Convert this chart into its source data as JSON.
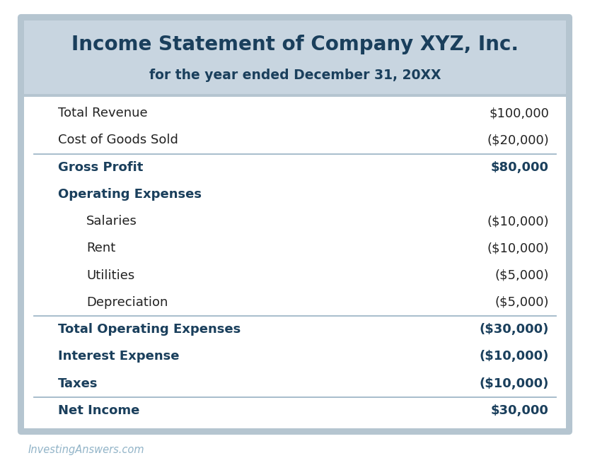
{
  "title_line1": "Income Statement of Company XYZ, Inc.",
  "title_line2": "for the year ended December 31, 20XX",
  "header_bg": "#c8d5e0",
  "outer_border_color": "#b5c5d0",
  "table_bg": "#ffffff",
  "figure_bg": "#ffffff",
  "title_color": "#1a3f5c",
  "bold_row_color": "#1a3f5c",
  "normal_row_color": "#222222",
  "divider_color": "#a0b8c8",
  "watermark_color": "#92b4c8",
  "watermark_text": "InvestingAnswers.com",
  "rows": [
    {
      "label": "Total Revenue",
      "value": "$100,000",
      "bold": false,
      "indent": false,
      "divider_below": false
    },
    {
      "label": "Cost of Goods Sold",
      "value": "($20,000)",
      "bold": false,
      "indent": false,
      "divider_below": true
    },
    {
      "label": "Gross Profit",
      "value": "$80,000",
      "bold": true,
      "indent": false,
      "divider_below": false
    },
    {
      "label": "Operating Expenses",
      "value": "",
      "bold": true,
      "indent": false,
      "divider_below": false
    },
    {
      "label": "Salaries",
      "value": "($10,000)",
      "bold": false,
      "indent": true,
      "divider_below": false
    },
    {
      "label": "Rent",
      "value": "($10,000)",
      "bold": false,
      "indent": true,
      "divider_below": false
    },
    {
      "label": "Utilities",
      "value": "($5,000)",
      "bold": false,
      "indent": true,
      "divider_below": false
    },
    {
      "label": "Depreciation",
      "value": "($5,000)",
      "bold": false,
      "indent": true,
      "divider_below": true
    },
    {
      "label": "Total Operating Expenses",
      "value": "($30,000)",
      "bold": true,
      "indent": false,
      "divider_below": false
    },
    {
      "label": "Interest Expense",
      "value": "($10,000)",
      "bold": true,
      "indent": false,
      "divider_below": false
    },
    {
      "label": "Taxes",
      "value": "($10,000)",
      "bold": true,
      "indent": false,
      "divider_below": true
    },
    {
      "label": "Net Income",
      "value": "$30,000",
      "bold": true,
      "indent": false,
      "divider_below": false
    }
  ],
  "font_size_title1": 20,
  "font_size_title2": 13.5,
  "font_size_row": 13,
  "font_size_watermark": 10.5
}
